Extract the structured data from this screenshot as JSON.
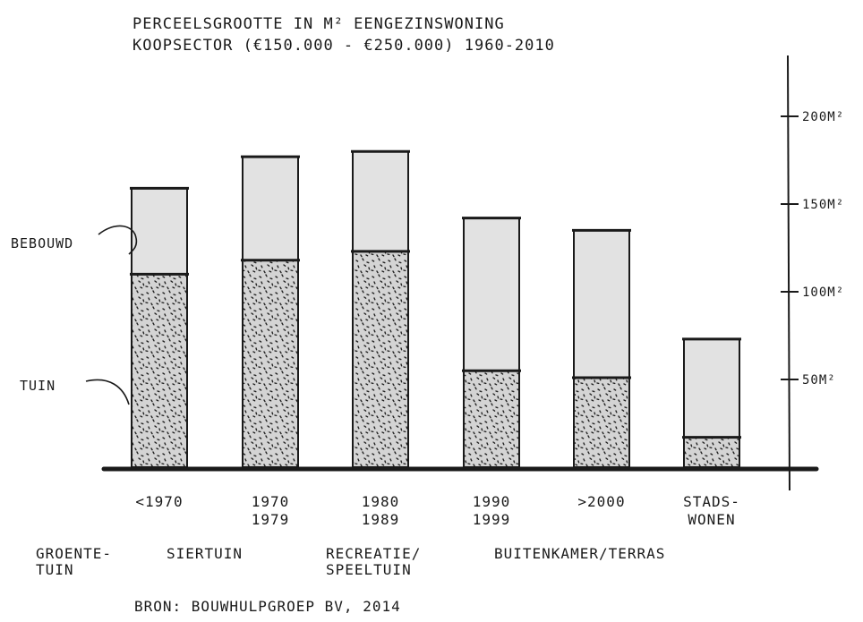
{
  "chart_data": {
    "type": "bar",
    "stacked": true,
    "title": "PERCEELSGROOTTE IN M² EENGEZINSWONING KOOPSECTOR (€150.000 - €250.000) 1960-2010",
    "categories": [
      [
        "<1970"
      ],
      [
        "1970",
        "1979"
      ],
      [
        "1980",
        "1989"
      ],
      [
        "1990",
        "1999"
      ],
      [
        ">2000"
      ],
      [
        "STADS-",
        "WONEN"
      ]
    ],
    "series": [
      {
        "name": "TUIN",
        "values": [
          110,
          118,
          123,
          55,
          51,
          17
        ]
      },
      {
        "name": "BEBOUWD",
        "values": [
          49,
          59,
          57,
          87,
          84,
          56
        ]
      }
    ],
    "ylim": [
      0,
      230
    ],
    "yticks": [
      50,
      100,
      150,
      200
    ],
    "ytick_labels": [
      "50M²",
      "100M²",
      "150M²",
      "200M²"
    ],
    "axis_side": "right",
    "group_labels": [
      [
        "GROENTE-",
        "TUIN"
      ],
      [
        "SIERTUIN"
      ],
      [
        "RECREATIE/",
        "SPEELTUIN"
      ],
      [
        "BUITENKAMER/TERRAS"
      ]
    ],
    "source": "BRON: BOUWHULPGROEP BV, 2014",
    "colors": {
      "bebouwd": "#e2e2e2",
      "tuin": "#d4d4d4",
      "ink": "#1a1a1a",
      "stipple": "#222222"
    }
  }
}
